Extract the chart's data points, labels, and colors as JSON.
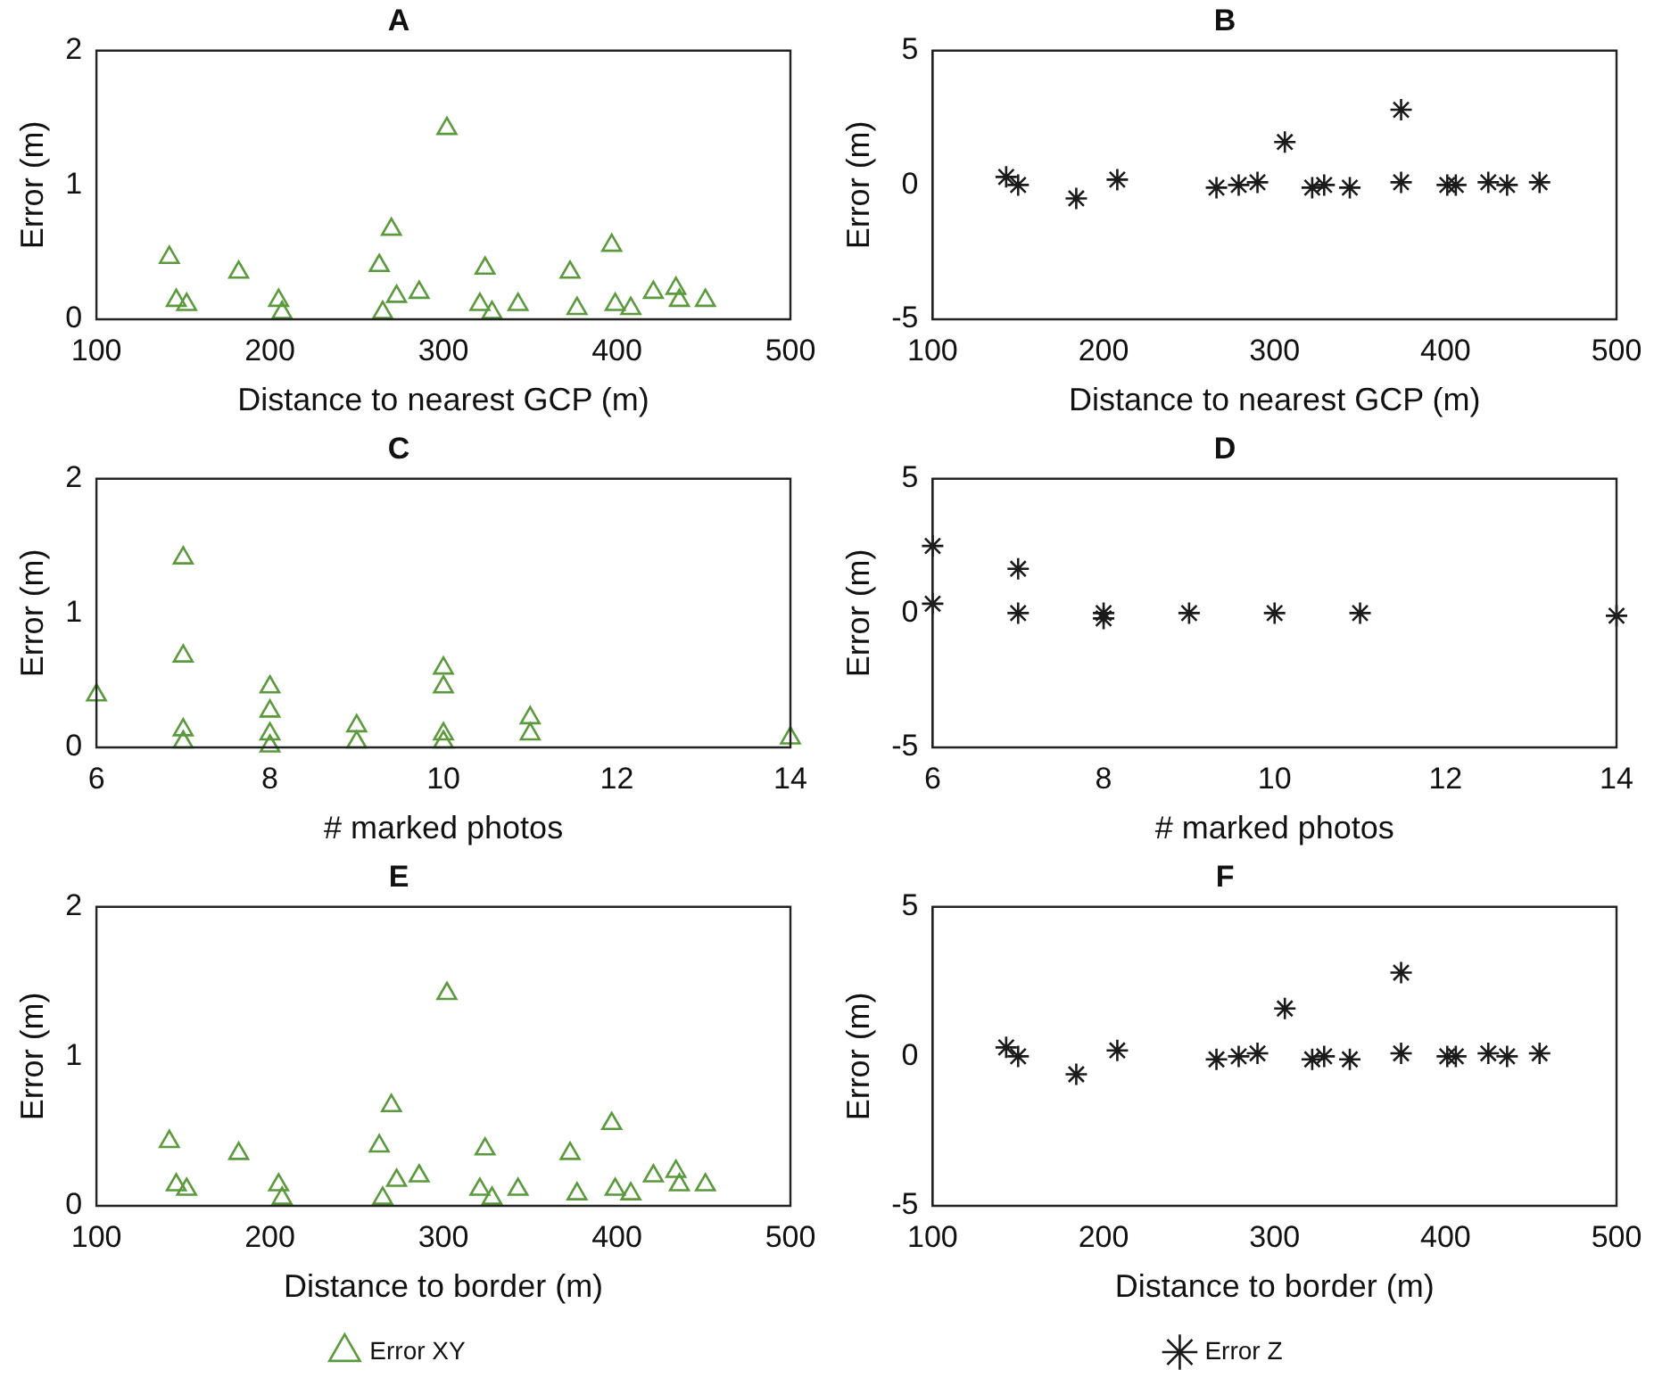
{
  "chart_data": [
    {
      "type": "scatter",
      "title": "A",
      "xlabel": "Distance to nearest GCP (m)",
      "ylabel": "Error (m)",
      "marker": "triangle",
      "xlim": [
        100,
        500
      ],
      "xticks": [
        100,
        200,
        300,
        400,
        500
      ],
      "ylim": [
        0,
        2
      ],
      "yticks": [
        0,
        1,
        2
      ],
      "series": [
        {
          "color": "#5a9a3c",
          "x": [
            142,
            146,
            152,
            182,
            205,
            207,
            263,
            270,
            265,
            273,
            286,
            302,
            324,
            321,
            328,
            343,
            373,
            377,
            397,
            399,
            408,
            421,
            434,
            436,
            451
          ],
          "values": [
            0.46,
            0.14,
            0.11,
            0.35,
            0.14,
            0.05,
            0.4,
            0.67,
            0.05,
            0.17,
            0.2,
            1.42,
            0.38,
            0.11,
            0.05,
            0.11,
            0.35,
            0.08,
            0.55,
            0.11,
            0.08,
            0.2,
            0.23,
            0.14,
            0.14
          ]
        }
      ]
    },
    {
      "type": "scatter",
      "title": "B",
      "xlabel": "Distance to nearest GCP (m)",
      "ylabel": "Error (m)",
      "marker": "cross",
      "xlim": [
        100,
        500
      ],
      "xticks": [
        100,
        200,
        300,
        400,
        500
      ],
      "ylim": [
        -5,
        5
      ],
      "yticks": [
        -5,
        0,
        5
      ],
      "series": [
        {
          "color": "#1a1a1a",
          "x": [
            143,
            150,
            184,
            208,
            266,
            279,
            290,
            306,
            322,
            329,
            344,
            374,
            374,
            401,
            406,
            425,
            436,
            455
          ],
          "values": [
            0.3,
            0,
            -0.5,
            0.2,
            -0.1,
            0,
            0.1,
            1.6,
            -0.1,
            0,
            -0.1,
            2.8,
            0.1,
            0,
            0,
            0.1,
            0,
            0.1
          ]
        }
      ]
    },
    {
      "type": "scatter",
      "title": "C",
      "xlabel": "# marked photos",
      "ylabel": "Error (m)",
      "marker": "triangle",
      "xlim": [
        6,
        14
      ],
      "xticks": [
        6,
        8,
        10,
        12,
        14
      ],
      "ylim": [
        0,
        2
      ],
      "yticks": [
        0,
        1,
        2
      ],
      "series": [
        {
          "color": "#5a9a3c",
          "x": [
            6,
            7,
            7,
            7,
            7,
            8,
            8,
            8,
            8,
            9,
            9,
            10,
            10,
            10,
            10,
            11,
            11,
            14
          ],
          "values": [
            0.39,
            1.41,
            0.68,
            0.13,
            0.04,
            0.45,
            0.27,
            0.1,
            0.01,
            0.16,
            0.04,
            0.59,
            0.45,
            0.1,
            0.04,
            0.22,
            0.1,
            0.07
          ]
        }
      ]
    },
    {
      "type": "scatter",
      "title": "D",
      "xlabel": "# marked photos",
      "ylabel": "Error (m)",
      "marker": "cross",
      "xlim": [
        6,
        14
      ],
      "xticks": [
        6,
        8,
        10,
        12,
        14
      ],
      "ylim": [
        -5,
        5
      ],
      "yticks": [
        -5,
        0,
        5
      ],
      "series": [
        {
          "color": "#1a1a1a",
          "x": [
            6,
            6,
            7,
            7,
            8,
            8,
            9,
            10,
            11,
            14
          ],
          "values": [
            2.5,
            0.35,
            1.65,
            0,
            -0.2,
            0,
            0,
            0,
            0,
            -0.1
          ]
        }
      ]
    },
    {
      "type": "scatter",
      "title": "E",
      "xlabel": "Distance to border (m)",
      "ylabel": "Error (m)",
      "marker": "triangle",
      "legend": "bottom",
      "xlim": [
        100,
        500
      ],
      "xticks": [
        100,
        200,
        300,
        400,
        500
      ],
      "ylim": [
        0,
        2
      ],
      "yticks": [
        0,
        1,
        2
      ],
      "series": [
        {
          "name": "Error XY",
          "color": "#5a9a3c",
          "x": [
            142,
            146,
            152,
            182,
            205,
            207,
            263,
            270,
            265,
            273,
            286,
            302,
            324,
            321,
            328,
            343,
            373,
            377,
            397,
            399,
            408,
            421,
            434,
            436,
            451
          ],
          "values": [
            0.43,
            0.14,
            0.11,
            0.35,
            0.14,
            0.05,
            0.4,
            0.67,
            0.05,
            0.17,
            0.2,
            1.42,
            0.38,
            0.11,
            0.05,
            0.11,
            0.35,
            0.08,
            0.55,
            0.11,
            0.08,
            0.2,
            0.23,
            0.14,
            0.14
          ]
        }
      ]
    },
    {
      "type": "scatter",
      "title": "F",
      "xlabel": "Distance to border (m)",
      "ylabel": "Error (m)",
      "marker": "cross",
      "legend": "bottom",
      "xlim": [
        100,
        500
      ],
      "xticks": [
        100,
        200,
        300,
        400,
        500
      ],
      "ylim": [
        -5,
        5
      ],
      "yticks": [
        -5,
        0,
        5
      ],
      "series": [
        {
          "name": "Error Z",
          "color": "#1a1a1a",
          "x": [
            143,
            150,
            184,
            208,
            266,
            279,
            290,
            306,
            322,
            329,
            344,
            374,
            374,
            401,
            406,
            425,
            436,
            455
          ],
          "values": [
            0.3,
            0,
            -0.6,
            0.2,
            -0.1,
            0,
            0.1,
            1.6,
            -0.1,
            0,
            -0.1,
            2.8,
            0.1,
            0,
            0,
            0.1,
            0,
            0.1
          ]
        }
      ]
    }
  ]
}
